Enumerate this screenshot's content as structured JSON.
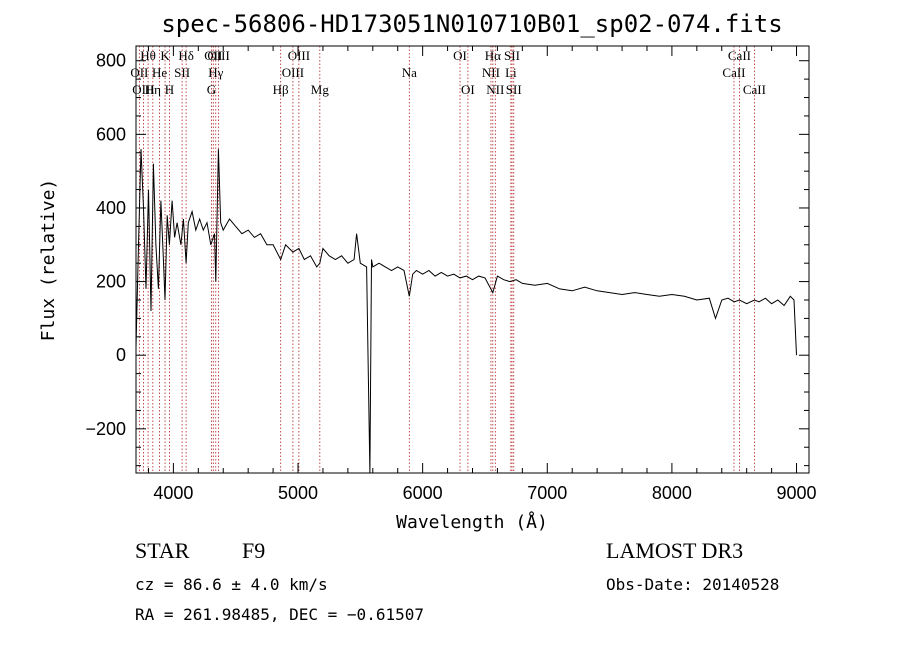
{
  "chart_data": {
    "type": "line",
    "title": "spec-56806-HD173051N010710B01_sp02-074.fits",
    "xlabel": "Wavelength (Å)",
    "ylabel": "Flux (relative)",
    "xlim": [
      3700,
      9100
    ],
    "ylim": [
      -320,
      840
    ],
    "xticks": [
      4000,
      5000,
      6000,
      7000,
      8000,
      9000
    ],
    "yticks": [
      -200,
      0,
      200,
      400,
      600,
      800
    ],
    "ytick_labels": [
      "−200",
      "0",
      "200",
      "400",
      "600",
      "800"
    ],
    "series": [
      {
        "name": "spectrum",
        "x": [
          3700,
          3720,
          3740,
          3760,
          3780,
          3800,
          3820,
          3840,
          3860,
          3880,
          3900,
          3920,
          3933,
          3950,
          3968,
          3990,
          4010,
          4030,
          4060,
          4080,
          4102,
          4120,
          4150,
          4180,
          4210,
          4240,
          4270,
          4300,
          4330,
          4340,
          4361,
          4380,
          4400,
          4450,
          4500,
          4550,
          4600,
          4650,
          4700,
          4750,
          4800,
          4861,
          4900,
          4959,
          5007,
          5050,
          5100,
          5150,
          5175,
          5200,
          5250,
          5300,
          5350,
          5400,
          5450,
          5470,
          5500,
          5550,
          5577,
          5590,
          5600,
          5650,
          5700,
          5750,
          5800,
          5850,
          5893,
          5920,
          5950,
          6000,
          6050,
          6100,
          6150,
          6200,
          6250,
          6300,
          6350,
          6400,
          6450,
          6500,
          6563,
          6600,
          6650,
          6700,
          6750,
          6800,
          6900,
          7000,
          7100,
          7200,
          7300,
          7400,
          7500,
          7600,
          7700,
          7800,
          7900,
          8000,
          8100,
          8200,
          8300,
          8350,
          8400,
          8450,
          8500,
          8542,
          8600,
          8662,
          8700,
          8750,
          8800,
          8850,
          8900,
          8950,
          8980,
          9000
        ],
        "y": [
          20,
          300,
          560,
          400,
          180,
          450,
          120,
          520,
          300,
          180,
          420,
          260,
          150,
          380,
          300,
          420,
          320,
          360,
          300,
          370,
          250,
          360,
          390,
          340,
          370,
          340,
          360,
          300,
          330,
          200,
          560,
          360,
          340,
          370,
          350,
          330,
          340,
          320,
          330,
          300,
          300,
          260,
          300,
          280,
          290,
          260,
          270,
          240,
          250,
          290,
          270,
          260,
          270,
          250,
          260,
          330,
          250,
          240,
          -320,
          260,
          240,
          250,
          240,
          230,
          240,
          230,
          160,
          220,
          230,
          220,
          230,
          215,
          225,
          215,
          220,
          210,
          215,
          205,
          215,
          210,
          170,
          215,
          205,
          200,
          205,
          195,
          190,
          195,
          180,
          175,
          185,
          175,
          170,
          165,
          170,
          165,
          160,
          165,
          160,
          150,
          155,
          100,
          150,
          155,
          145,
          150,
          140,
          150,
          145,
          155,
          140,
          150,
          135,
          160,
          150,
          0
        ]
      }
    ],
    "lines": [
      {
        "label": "Hθ",
        "x": 3797,
        "row": 0
      },
      {
        "label": "OII",
        "x": 3727,
        "row": 1
      },
      {
        "label": "OIII",
        "x": 3760,
        "row": 2
      },
      {
        "label": "He",
        "x": 3889,
        "row": 1
      },
      {
        "label": "Hη",
        "x": 3835,
        "row": 2
      },
      {
        "label": "K",
        "x": 3933,
        "row": 0
      },
      {
        "label": "H",
        "x": 3968,
        "row": 2
      },
      {
        "label": "SII",
        "x": 4070,
        "row": 1
      },
      {
        "label": "Hδ",
        "x": 4102,
        "row": 0
      },
      {
        "label": "OII",
        "x": 4320,
        "row": 0
      },
      {
        "label": "G",
        "x": 4305,
        "row": 2
      },
      {
        "label": "Hγ",
        "x": 4340,
        "row": 1
      },
      {
        "label": "OIII",
        "x": 4363,
        "row": 0
      },
      {
        "label": "Hβ",
        "x": 4861,
        "row": 2
      },
      {
        "label": "OIII",
        "x": 4959,
        "row": 1
      },
      {
        "label": "OIII",
        "x": 5007,
        "row": 0
      },
      {
        "label": "Mg",
        "x": 5175,
        "row": 2
      },
      {
        "label": "Na",
        "x": 5893,
        "row": 1
      },
      {
        "label": "OI",
        "x": 6300,
        "row": 0
      },
      {
        "label": "OI",
        "x": 6363,
        "row": 2
      },
      {
        "label": "NII",
        "x": 6548,
        "row": 1
      },
      {
        "label": "Hα",
        "x": 6563,
        "row": 0
      },
      {
        "label": "NII",
        "x": 6583,
        "row": 2
      },
      {
        "label": "Li",
        "x": 6708,
        "row": 1
      },
      {
        "label": "SII",
        "x": 6717,
        "row": 0
      },
      {
        "label": "SII",
        "x": 6731,
        "row": 2
      },
      {
        "label": "CaII",
        "x": 8498,
        "row": 1
      },
      {
        "label": "CaII",
        "x": 8542,
        "row": 0
      },
      {
        "label": "CaII",
        "x": 8662,
        "row": 2
      }
    ]
  },
  "info": {
    "class": "STAR",
    "subclass": "F9",
    "survey": "LAMOST DR3",
    "cz": "cz = 86.6 ± 4.0 km/s",
    "obs_date": "Obs-Date: 20140528",
    "coords": "RA = 261.98485, DEC =  −0.61507"
  }
}
